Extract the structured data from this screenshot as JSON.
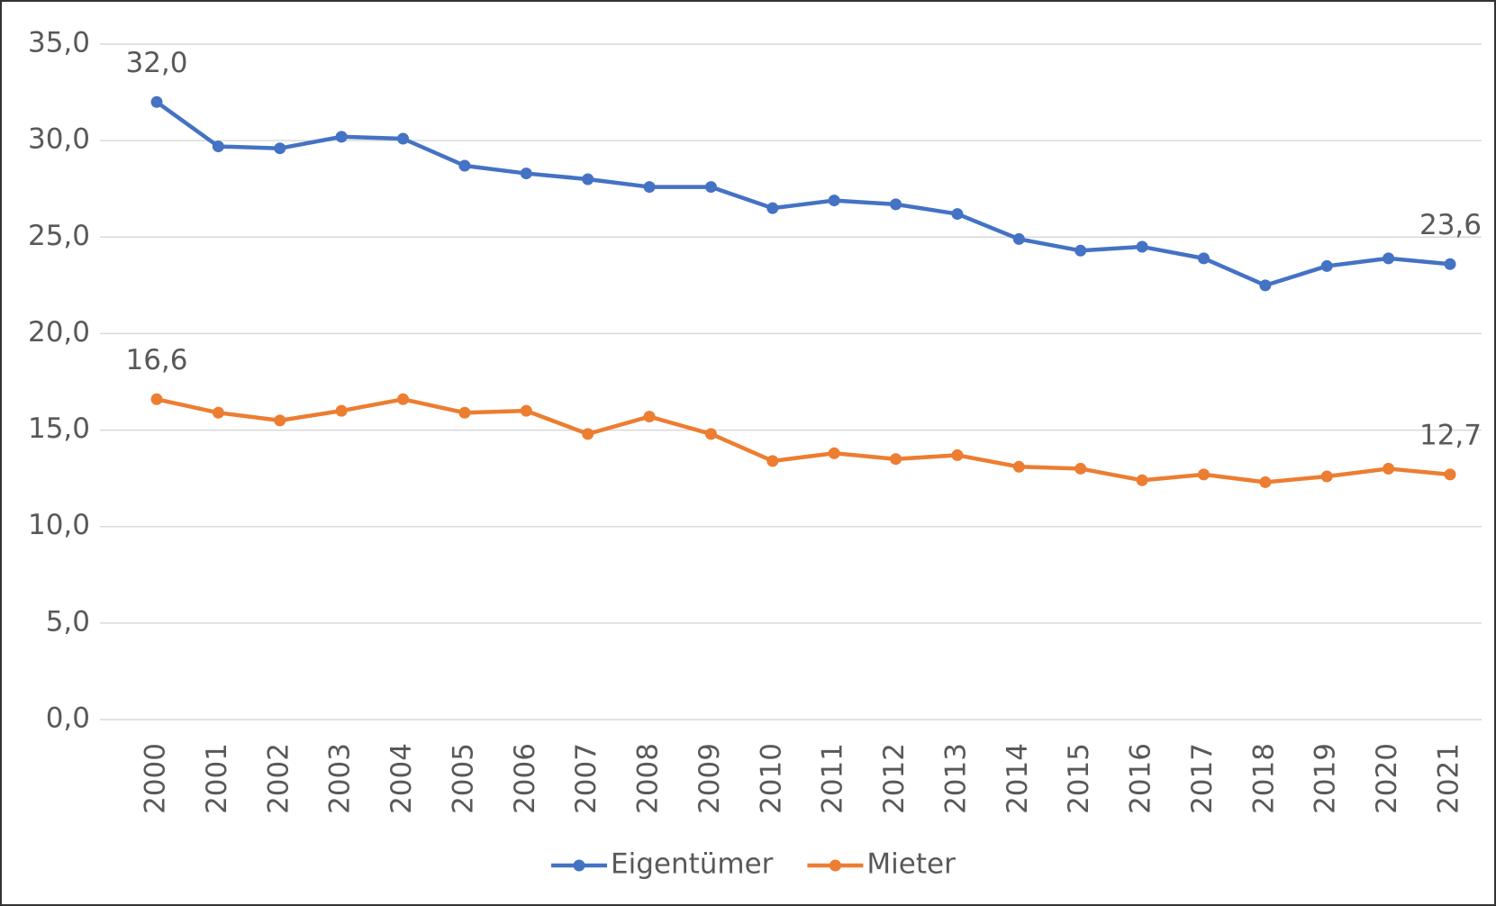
{
  "chart_data": {
    "type": "line",
    "categories": [
      "2000",
      "2001",
      "2002",
      "2003",
      "2004",
      "2005",
      "2006",
      "2007",
      "2008",
      "2009",
      "2010",
      "2011",
      "2012",
      "2013",
      "2014",
      "2015",
      "2016",
      "2017",
      "2018",
      "2019",
      "2020",
      "2021"
    ],
    "series": [
      {
        "name": "Eigentümer",
        "color": "#4472c4",
        "values": [
          32.0,
          29.7,
          29.6,
          30.2,
          30.1,
          28.7,
          28.3,
          28.0,
          27.6,
          27.6,
          26.5,
          26.9,
          26.7,
          26.2,
          24.9,
          24.3,
          24.5,
          23.9,
          22.5,
          23.5,
          23.9,
          23.6
        ],
        "value_labels": [
          "32,0",
          null,
          null,
          null,
          null,
          null,
          null,
          null,
          null,
          null,
          null,
          null,
          null,
          null,
          null,
          null,
          null,
          null,
          null,
          null,
          null,
          "23,6"
        ]
      },
      {
        "name": "Mieter",
        "color": "#ed7d31",
        "values": [
          16.6,
          15.9,
          15.5,
          16.0,
          16.6,
          15.9,
          16.0,
          14.8,
          15.7,
          14.8,
          13.4,
          13.8,
          13.5,
          13.7,
          13.1,
          13.0,
          12.4,
          12.7,
          12.3,
          12.6,
          13.0,
          12.7
        ],
        "value_labels": [
          "16,6",
          null,
          null,
          null,
          null,
          null,
          null,
          null,
          null,
          null,
          null,
          null,
          null,
          null,
          null,
          null,
          null,
          null,
          null,
          null,
          null,
          "12,7"
        ]
      }
    ],
    "ylim": [
      0,
      35
    ],
    "yticks": [
      {
        "value": 0,
        "label": "0,0"
      },
      {
        "value": 5,
        "label": "5,0"
      },
      {
        "value": 10,
        "label": "10,0"
      },
      {
        "value": 15,
        "label": "15,0"
      },
      {
        "value": 20,
        "label": "20,0"
      },
      {
        "value": 25,
        "label": "25,0"
      },
      {
        "value": 30,
        "label": "30,0"
      },
      {
        "value": 35,
        "label": "35,0"
      }
    ],
    "grid": true,
    "legend": "bottom"
  }
}
